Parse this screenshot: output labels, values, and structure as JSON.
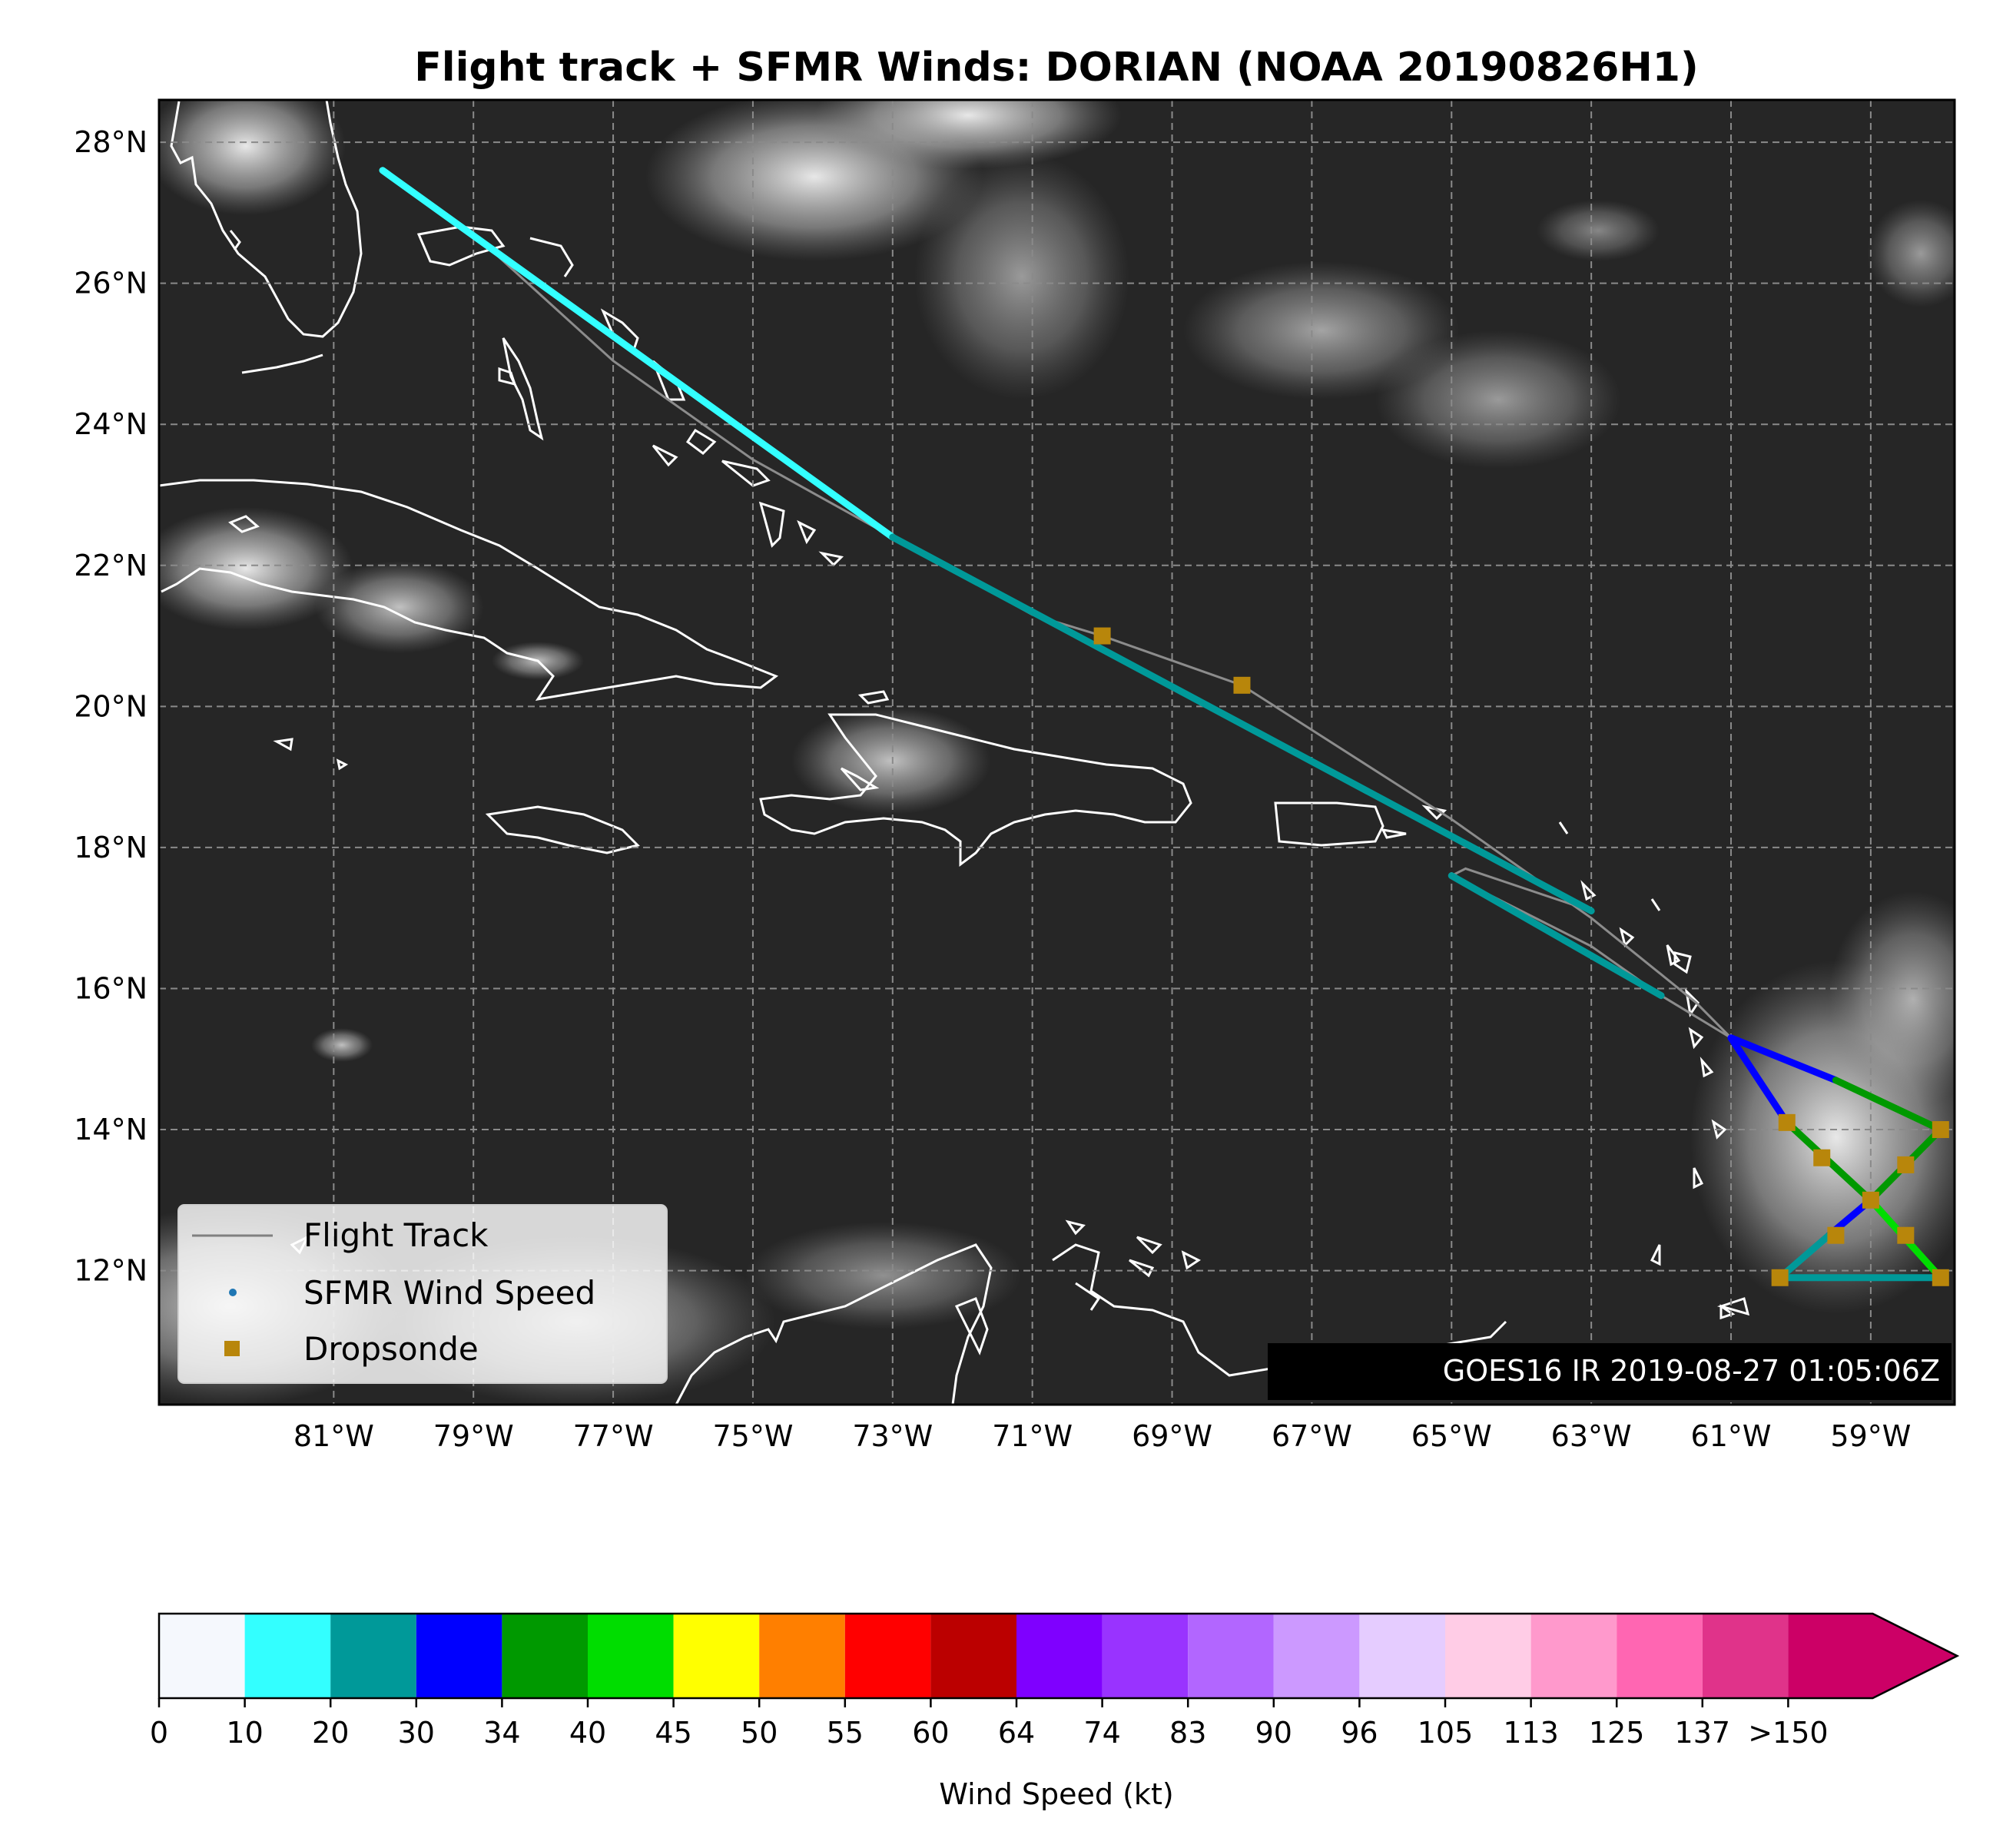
{
  "title": "Flight track + SFMR Winds: DORIAN (NOAA 20190826H1)",
  "map": {
    "lon_range": [
      -83.5,
      -57.8
    ],
    "lat_range": [
      10.1,
      28.6
    ],
    "lon_ticks": [
      {
        "value": -81,
        "label": "81°W"
      },
      {
        "value": -79,
        "label": "79°W"
      },
      {
        "value": -77,
        "label": "77°W"
      },
      {
        "value": -75,
        "label": "75°W"
      },
      {
        "value": -73,
        "label": "73°W"
      },
      {
        "value": -71,
        "label": "71°W"
      },
      {
        "value": -69,
        "label": "69°W"
      },
      {
        "value": -67,
        "label": "67°W"
      },
      {
        "value": -65,
        "label": "65°W"
      },
      {
        "value": -63,
        "label": "63°W"
      },
      {
        "value": -61,
        "label": "61°W"
      },
      {
        "value": -59,
        "label": "59°W"
      }
    ],
    "lat_ticks": [
      {
        "value": 28,
        "label": "28°N"
      },
      {
        "value": 26,
        "label": "26°N"
      },
      {
        "value": 24,
        "label": "24°N"
      },
      {
        "value": 22,
        "label": "22°N"
      },
      {
        "value": 20,
        "label": "20°N"
      },
      {
        "value": 18,
        "label": "18°N"
      },
      {
        "value": 16,
        "label": "16°N"
      },
      {
        "value": 14,
        "label": "14°N"
      },
      {
        "value": 12,
        "label": "12°N"
      }
    ],
    "grid": true,
    "background": "GOES16 IR satellite imagery",
    "stamp": "GOES16 IR 2019-08-27 01:05:06Z"
  },
  "legend": {
    "position": "lower-left",
    "items": [
      {
        "label": "Flight Track",
        "kind": "line",
        "color": "#808080"
      },
      {
        "label": "SFMR Wind Speed",
        "kind": "dot",
        "color": "#1f77b4"
      },
      {
        "label": "Dropsonde",
        "kind": "square",
        "color": "#b8860b"
      }
    ]
  },
  "colorbar": {
    "label": "Wind Speed (kt)",
    "ticks": [
      "0",
      "10",
      "20",
      "30",
      "34",
      "40",
      "45",
      "50",
      "55",
      "60",
      "64",
      "74",
      "83",
      "90",
      "96",
      "105",
      "113",
      "125",
      "137",
      ">150"
    ],
    "colors": [
      "#f5f8fd",
      "#33ffff",
      "#009999",
      "#0000ff",
      "#009900",
      "#00dd00",
      "#ffff00",
      "#ff7f00",
      "#ff0000",
      "#bb0000",
      "#7f00ff",
      "#9933ff",
      "#b266ff",
      "#cc99ff",
      "#e5ccff",
      "#ffcce6",
      "#ff99cc",
      "#ff66b2",
      "#e0338a",
      "#cc0066"
    ]
  },
  "chart_data": {
    "type": "scatter",
    "title": "Flight track + SFMR Winds: DORIAN (NOAA 20190826H1)",
    "xlabel": "",
    "ylabel": "",
    "series": [
      {
        "name": "Flight Track",
        "points": [
          [
            -80.3,
            27.6
          ],
          [
            -79.0,
            26.7
          ],
          [
            -77.0,
            24.9
          ],
          [
            -75.0,
            23.5
          ],
          [
            -73.0,
            22.4
          ],
          [
            -71.0,
            21.3
          ],
          [
            -70.0,
            21.0
          ],
          [
            -68.0,
            20.3
          ],
          [
            -65.0,
            18.4
          ],
          [
            -63.0,
            17.0
          ],
          [
            -62.0,
            16.2
          ],
          [
            -61.5,
            15.8
          ],
          [
            -61.0,
            15.3
          ],
          [
            -59.5,
            14.7
          ],
          [
            -58.0,
            14.0
          ],
          [
            -59.0,
            13.0
          ],
          [
            -60.3,
            11.9
          ],
          [
            -58.0,
            11.9
          ],
          [
            -59.0,
            13.0
          ],
          [
            -60.2,
            14.1
          ],
          [
            -61.0,
            15.3
          ],
          [
            -62.0,
            15.9
          ],
          [
            -63.0,
            16.6
          ],
          [
            -65.0,
            17.6
          ],
          [
            -64.8,
            17.7
          ],
          [
            -63.0,
            17.1
          ]
        ]
      },
      {
        "name": "SFMR Wind Speed",
        "legs": [
          {
            "from": [
              -80.3,
              27.6
            ],
            "to": [
              -73.0,
              22.4
            ],
            "wind_kt": 15
          },
          {
            "from": [
              -73.0,
              22.4
            ],
            "to": [
              -63.0,
              17.1
            ],
            "wind_kt": 22
          },
          {
            "from": [
              -65.0,
              17.6
            ],
            "to": [
              -62.0,
              15.9
            ],
            "wind_kt": 22
          },
          {
            "from": [
              -61.0,
              15.3
            ],
            "to": [
              -59.5,
              14.7
            ],
            "wind_kt": 31
          },
          {
            "from": [
              -59.5,
              14.7
            ],
            "to": [
              -58.0,
              14.0
            ],
            "wind_kt": 36
          },
          {
            "from": [
              -58.0,
              14.0
            ],
            "to": [
              -59.0,
              13.0
            ],
            "wind_kt": 38
          },
          {
            "from": [
              -59.0,
              13.0
            ],
            "to": [
              -59.6,
              12.5
            ],
            "wind_kt": 31
          },
          {
            "from": [
              -59.6,
              12.5
            ],
            "to": [
              -60.3,
              11.9
            ],
            "wind_kt": 22
          },
          {
            "from": [
              -60.3,
              11.9
            ],
            "to": [
              -58.0,
              11.9
            ],
            "wind_kt": 22
          },
          {
            "from": [
              -58.0,
              11.9
            ],
            "to": [
              -59.0,
              13.0
            ],
            "wind_kt": 40
          },
          {
            "from": [
              -59.0,
              13.0
            ],
            "to": [
              -60.2,
              14.1
            ],
            "wind_kt": 36
          },
          {
            "from": [
              -60.2,
              14.1
            ],
            "to": [
              -61.0,
              15.3
            ],
            "wind_kt": 31
          }
        ]
      },
      {
        "name": "Dropsonde",
        "points": [
          [
            -70.0,
            21.0
          ],
          [
            -68.0,
            20.3
          ],
          [
            -60.2,
            14.1
          ],
          [
            -59.7,
            13.6
          ],
          [
            -59.0,
            13.0
          ],
          [
            -59.5,
            12.5
          ],
          [
            -60.3,
            11.9
          ],
          [
            -58.0,
            14.0
          ],
          [
            -58.5,
            13.5
          ],
          [
            -58.5,
            12.5
          ],
          [
            -58.0,
            11.9
          ]
        ]
      }
    ]
  }
}
